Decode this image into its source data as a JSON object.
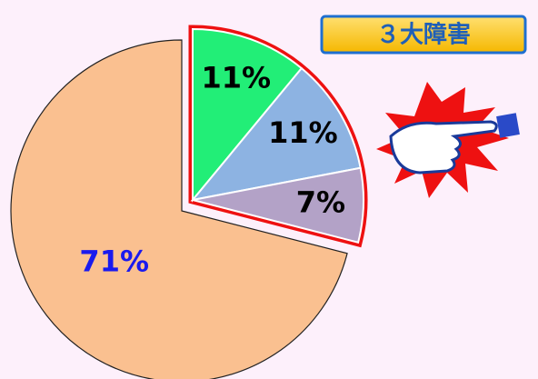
{
  "chart_data": {
    "type": "pie",
    "annotation": "３大障害",
    "categories": [
      null,
      null,
      null,
      null
    ],
    "values": [
      11,
      11,
      7,
      71
    ],
    "value_labels": [
      "11%",
      "11%",
      "7%",
      "71%"
    ],
    "colors": [
      "#22ee77",
      "#8db3e2",
      "#b3a2c7",
      "#fac090"
    ],
    "label_colors": [
      "#000000",
      "#000000",
      "#000000",
      "#1a1aee"
    ],
    "exploded": [
      true,
      true,
      true,
      false
    ]
  }
}
